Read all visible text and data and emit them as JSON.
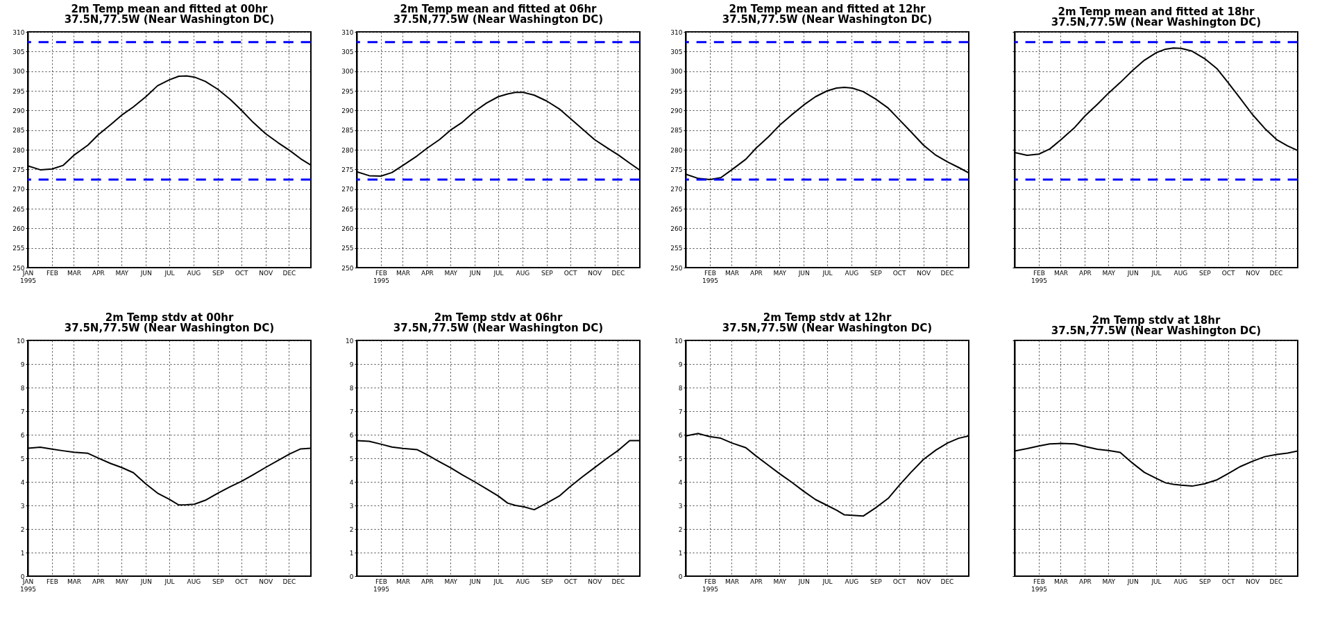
{
  "chart_data": [
    {
      "type": "line",
      "title": "2m Temp mean and fitted at 00hr",
      "subtitle": "37.5N,77.5W  (Near Washington DC)",
      "x": [
        "1995-01-01",
        "1995-01-17",
        "1995-02-01",
        "1995-02-15",
        "1995-03-01",
        "1995-03-19",
        "1995-04-01",
        "1995-04-17",
        "1995-05-01",
        "1995-05-16",
        "1995-06-01",
        "1995-06-16",
        "1995-07-01",
        "1995-07-13",
        "1995-07-23",
        "1995-08-02",
        "1995-08-16",
        "1995-09-01",
        "1995-09-17",
        "1995-10-01",
        "1995-10-16",
        "1995-11-01",
        "1995-11-17",
        "1995-12-02",
        "1995-12-16",
        "1995-12-29"
      ],
      "series": [
        {
          "color": "#000000",
          "values": [
            275.9,
            274.9,
            275.1,
            276.0,
            278.6,
            281.2,
            283.8,
            286.4,
            288.8,
            290.9,
            293.5,
            296.3,
            297.8,
            298.7,
            298.8,
            298.5,
            297.4,
            295.4,
            292.8,
            290.1,
            287.0,
            284.1,
            281.8,
            279.8,
            277.7,
            276.1
          ]
        }
      ],
      "xlim": [
        "1995-01-01",
        "1995-12-29"
      ],
      "xticks": [
        {
          "value": "1995-01-01",
          "label": "JAN 1995"
        },
        {
          "value": "1995-02-01",
          "label": "FEB"
        },
        {
          "value": "1995-03-01",
          "label": "MAR"
        },
        {
          "value": "1995-04-01",
          "label": "APR"
        },
        {
          "value": "1995-05-01",
          "label": "MAY"
        },
        {
          "value": "1995-06-01",
          "label": "JUN"
        },
        {
          "value": "1995-07-01",
          "label": "JUL"
        },
        {
          "value": "1995-08-01",
          "label": "AUG"
        },
        {
          "value": "1995-09-01",
          "label": "SEP"
        },
        {
          "value": "1995-10-01",
          "label": "OCT"
        },
        {
          "value": "1995-11-01",
          "label": "NOV"
        },
        {
          "value": "1995-12-01",
          "label": "DEC"
        }
      ],
      "ylim": [
        250,
        310
      ],
      "yticks": [
        250,
        255,
        260,
        265,
        270,
        275,
        280,
        285,
        290,
        295,
        300,
        305,
        310
      ],
      "grid": true,
      "ref_lines": [
        {
          "axis": "y",
          "value": 307.4,
          "color": "#0000ff",
          "line_style": "dashed"
        },
        {
          "axis": "y",
          "value": 272.4,
          "color": "#0000ff",
          "line_style": "dashed"
        }
      ]
    },
    {
      "type": "line",
      "title": "2m Temp mean and fitted at 06hr",
      "subtitle": "37.5N,77.5W  (Near Washington DC)",
      "x": [
        "1995-01-01",
        "1995-01-17",
        "1995-02-01",
        "1995-02-15",
        "1995-03-01",
        "1995-03-19",
        "1995-04-01",
        "1995-04-17",
        "1995-05-01",
        "1995-05-16",
        "1995-06-01",
        "1995-06-16",
        "1995-07-01",
        "1995-07-13",
        "1995-07-23",
        "1995-08-02",
        "1995-08-16",
        "1995-09-01",
        "1995-09-17",
        "1995-10-01",
        "1995-10-16",
        "1995-11-01",
        "1995-11-17",
        "1995-12-02",
        "1995-12-16",
        "1995-12-29"
      ],
      "series": [
        {
          "color": "#000000",
          "values": [
            274.4,
            273.4,
            273.3,
            274.2,
            276.0,
            278.4,
            280.4,
            282.6,
            285.0,
            287.0,
            289.8,
            291.9,
            293.5,
            294.2,
            294.6,
            294.6,
            293.9,
            292.4,
            290.4,
            288.0,
            285.4,
            282.6,
            280.5,
            278.6,
            276.6,
            274.8
          ]
        }
      ],
      "xlim": [
        "1995-01-01",
        "1995-12-29"
      ],
      "xticks": [
        {
          "value": "1995-02-01",
          "label": "FEB 1995"
        },
        {
          "value": "1995-03-01",
          "label": "MAR"
        },
        {
          "value": "1995-04-01",
          "label": "APR"
        },
        {
          "value": "1995-05-01",
          "label": "MAY"
        },
        {
          "value": "1995-06-01",
          "label": "JUN"
        },
        {
          "value": "1995-07-01",
          "label": "JUL"
        },
        {
          "value": "1995-08-01",
          "label": "AUG"
        },
        {
          "value": "1995-09-01",
          "label": "SEP"
        },
        {
          "value": "1995-10-01",
          "label": "OCT"
        },
        {
          "value": "1995-11-01",
          "label": "NOV"
        },
        {
          "value": "1995-12-01",
          "label": "DEC"
        }
      ],
      "ylim": [
        250,
        310
      ],
      "yticks": [
        250,
        255,
        260,
        265,
        270,
        275,
        280,
        285,
        290,
        295,
        300,
        305,
        310
      ],
      "grid": true,
      "ref_lines": [
        {
          "axis": "y",
          "value": 307.4,
          "color": "#0000ff",
          "line_style": "dashed"
        },
        {
          "axis": "y",
          "value": 272.4,
          "color": "#0000ff",
          "line_style": "dashed"
        }
      ]
    },
    {
      "type": "line",
      "title": "2m Temp mean and fitted at 12hr",
      "subtitle": "37.5N,77.5W  (Near Washington DC)",
      "x": [
        "1995-01-01",
        "1995-01-17",
        "1995-02-01",
        "1995-02-15",
        "1995-03-01",
        "1995-03-19",
        "1995-04-01",
        "1995-04-17",
        "1995-05-01",
        "1995-05-16",
        "1995-06-01",
        "1995-06-16",
        "1995-07-01",
        "1995-07-13",
        "1995-07-23",
        "1995-08-02",
        "1995-08-16",
        "1995-09-01",
        "1995-09-17",
        "1995-10-01",
        "1995-10-16",
        "1995-11-01",
        "1995-11-17",
        "1995-12-02",
        "1995-12-16",
        "1995-12-29"
      ],
      "series": [
        {
          "color": "#000000",
          "values": [
            273.8,
            272.7,
            272.4,
            272.9,
            274.9,
            277.6,
            280.4,
            283.3,
            286.2,
            288.8,
            291.4,
            293.5,
            295.0,
            295.7,
            295.9,
            295.7,
            294.8,
            292.9,
            290.6,
            287.7,
            284.6,
            281.2,
            278.6,
            276.9,
            275.5,
            274.1
          ]
        }
      ],
      "xlim": [
        "1995-01-01",
        "1995-12-29"
      ],
      "xticks": [
        {
          "value": "1995-02-01",
          "label": "FEB 1995"
        },
        {
          "value": "1995-03-01",
          "label": "MAR"
        },
        {
          "value": "1995-04-01",
          "label": "APR"
        },
        {
          "value": "1995-05-01",
          "label": "MAY"
        },
        {
          "value": "1995-06-01",
          "label": "JUN"
        },
        {
          "value": "1995-07-01",
          "label": "JUL"
        },
        {
          "value": "1995-08-01",
          "label": "AUG"
        },
        {
          "value": "1995-09-01",
          "label": "SEP"
        },
        {
          "value": "1995-10-01",
          "label": "OCT"
        },
        {
          "value": "1995-11-01",
          "label": "NOV"
        },
        {
          "value": "1995-12-01",
          "label": "DEC"
        }
      ],
      "ylim": [
        250,
        310
      ],
      "yticks": [
        250,
        255,
        260,
        265,
        270,
        275,
        280,
        285,
        290,
        295,
        300,
        305,
        310
      ],
      "grid": true,
      "ref_lines": [
        {
          "axis": "y",
          "value": 307.4,
          "color": "#0000ff",
          "line_style": "dashed"
        },
        {
          "axis": "y",
          "value": 272.4,
          "color": "#0000ff",
          "line_style": "dashed"
        }
      ]
    },
    {
      "type": "line",
      "title": "2m Temp mean and fitted at 18hr",
      "subtitle": "37.5N,77.5W  (Near Washington DC)",
      "x": [
        "1995-01-01",
        "1995-01-17",
        "1995-02-01",
        "1995-02-15",
        "1995-03-01",
        "1995-03-19",
        "1995-04-01",
        "1995-04-17",
        "1995-05-01",
        "1995-05-16",
        "1995-06-01",
        "1995-06-16",
        "1995-07-01",
        "1995-07-13",
        "1995-07-23",
        "1995-08-02",
        "1995-08-16",
        "1995-09-01",
        "1995-09-17",
        "1995-10-01",
        "1995-10-16",
        "1995-11-01",
        "1995-11-17",
        "1995-12-02",
        "1995-12-16",
        "1995-12-29"
      ],
      "series": [
        {
          "color": "#000000",
          "values": [
            279.3,
            278.6,
            278.9,
            280.2,
            282.5,
            285.7,
            288.6,
            291.6,
            294.4,
            297.1,
            300.2,
            302.8,
            304.7,
            305.6,
            305.9,
            305.8,
            305.1,
            303.2,
            300.6,
            297.1,
            293.2,
            289.0,
            285.4,
            282.6,
            281.0,
            279.8
          ]
        }
      ],
      "xlim": [
        "1995-01-01",
        "1995-12-29"
      ],
      "xticks": [
        {
          "value": "1995-02-01",
          "label": "FEB 1995"
        },
        {
          "value": "1995-03-01",
          "label": "MAR"
        },
        {
          "value": "1995-04-01",
          "label": "APR"
        },
        {
          "value": "1995-05-01",
          "label": "MAY"
        },
        {
          "value": "1995-06-01",
          "label": "JUN"
        },
        {
          "value": "1995-07-01",
          "label": "JUL"
        },
        {
          "value": "1995-08-01",
          "label": "AUG"
        },
        {
          "value": "1995-09-01",
          "label": "SEP"
        },
        {
          "value": "1995-10-01",
          "label": "OCT"
        },
        {
          "value": "1995-11-01",
          "label": "NOV"
        },
        {
          "value": "1995-12-01",
          "label": "DEC"
        }
      ],
      "ylim": [
        250,
        310
      ],
      "yticks": [
        250,
        255,
        260,
        265,
        270,
        275,
        280,
        285,
        290,
        295,
        300,
        305,
        310
      ],
      "grid": true,
      "tick_labels": "x",
      "ref_lines": [
        {
          "axis": "y",
          "value": 307.4,
          "color": "#0000ff",
          "line_style": "dashed"
        },
        {
          "axis": "y",
          "value": 272.4,
          "color": "#0000ff",
          "line_style": "dashed"
        }
      ]
    },
    {
      "type": "line",
      "title": "2m Temp stdv at 00hr",
      "subtitle": "37.5N,77.5W  (Near Washington DC)",
      "x": [
        "1995-01-01",
        "1995-01-17",
        "1995-02-01",
        "1995-02-15",
        "1995-03-01",
        "1995-03-19",
        "1995-04-01",
        "1995-04-17",
        "1995-05-01",
        "1995-05-16",
        "1995-06-01",
        "1995-06-16",
        "1995-07-01",
        "1995-07-13",
        "1995-07-23",
        "1995-08-02",
        "1995-08-16",
        "1995-09-01",
        "1995-09-17",
        "1995-10-01",
        "1995-10-16",
        "1995-11-01",
        "1995-11-17",
        "1995-12-02",
        "1995-12-16",
        "1995-12-29"
      ],
      "series": [
        {
          "color": "#000000",
          "values": [
            5.43,
            5.47,
            5.39,
            5.32,
            5.26,
            5.21,
            5.01,
            4.78,
            4.61,
            4.39,
            3.91,
            3.52,
            3.26,
            3.02,
            3.03,
            3.05,
            3.22,
            3.52,
            3.8,
            4.02,
            4.3,
            4.61,
            4.91,
            5.19,
            5.4,
            5.43
          ]
        }
      ],
      "xlim": [
        "1995-01-01",
        "1995-12-29"
      ],
      "xticks": [
        {
          "value": "1995-01-01",
          "label": "JAN 1995"
        },
        {
          "value": "1995-02-01",
          "label": "FEB"
        },
        {
          "value": "1995-03-01",
          "label": "MAR"
        },
        {
          "value": "1995-04-01",
          "label": "APR"
        },
        {
          "value": "1995-05-01",
          "label": "MAY"
        },
        {
          "value": "1995-06-01",
          "label": "JUN"
        },
        {
          "value": "1995-07-01",
          "label": "JUL"
        },
        {
          "value": "1995-08-01",
          "label": "AUG"
        },
        {
          "value": "1995-09-01",
          "label": "SEP"
        },
        {
          "value": "1995-10-01",
          "label": "OCT"
        },
        {
          "value": "1995-11-01",
          "label": "NOV"
        },
        {
          "value": "1995-12-01",
          "label": "DEC"
        }
      ],
      "ylim": [
        0,
        10
      ],
      "yticks": [
        0,
        1,
        2,
        3,
        4,
        5,
        6,
        7,
        8,
        9,
        10
      ],
      "grid": true
    },
    {
      "type": "line",
      "title": "2m Temp stdv at 06hr",
      "subtitle": "37.5N,77.5W  (Near Washington DC)",
      "x": [
        "1995-01-01",
        "1995-01-17",
        "1995-02-01",
        "1995-02-15",
        "1995-03-01",
        "1995-03-19",
        "1995-04-01",
        "1995-04-17",
        "1995-05-01",
        "1995-05-16",
        "1995-06-01",
        "1995-06-16",
        "1995-07-01",
        "1995-07-13",
        "1995-07-23",
        "1995-08-02",
        "1995-08-16",
        "1995-09-01",
        "1995-09-17",
        "1995-10-01",
        "1995-10-16",
        "1995-11-01",
        "1995-11-17",
        "1995-12-02",
        "1995-12-16",
        "1995-12-29"
      ],
      "series": [
        {
          "color": "#000000",
          "values": [
            5.75,
            5.72,
            5.6,
            5.48,
            5.42,
            5.37,
            5.15,
            4.85,
            4.6,
            4.3,
            4.0,
            3.7,
            3.4,
            3.1,
            3.0,
            2.95,
            2.82,
            3.1,
            3.4,
            3.8,
            4.2,
            4.6,
            5.0,
            5.35,
            5.75,
            5.75
          ]
        }
      ],
      "xlim": [
        "1995-01-01",
        "1995-12-29"
      ],
      "xticks": [
        {
          "value": "1995-02-01",
          "label": "FEB 1995"
        },
        {
          "value": "1995-03-01",
          "label": "MAR"
        },
        {
          "value": "1995-04-01",
          "label": "APR"
        },
        {
          "value": "1995-05-01",
          "label": "MAY"
        },
        {
          "value": "1995-06-01",
          "label": "JUN"
        },
        {
          "value": "1995-07-01",
          "label": "JUL"
        },
        {
          "value": "1995-08-01",
          "label": "AUG"
        },
        {
          "value": "1995-09-01",
          "label": "SEP"
        },
        {
          "value": "1995-10-01",
          "label": "OCT"
        },
        {
          "value": "1995-11-01",
          "label": "NOV"
        },
        {
          "value": "1995-12-01",
          "label": "DEC"
        }
      ],
      "ylim": [
        0,
        10
      ],
      "yticks": [
        0,
        1,
        2,
        3,
        4,
        5,
        6,
        7,
        8,
        9,
        10
      ],
      "grid": true
    },
    {
      "type": "line",
      "title": "2m Temp stdv at 12hr",
      "subtitle": "37.5N,77.5W  (Near Washington DC)",
      "x": [
        "1995-01-01",
        "1995-01-17",
        "1995-02-01",
        "1995-02-15",
        "1995-03-01",
        "1995-03-19",
        "1995-04-01",
        "1995-04-17",
        "1995-05-01",
        "1995-05-16",
        "1995-06-01",
        "1995-06-16",
        "1995-07-01",
        "1995-07-13",
        "1995-07-23",
        "1995-08-02",
        "1995-08-16",
        "1995-09-01",
        "1995-09-17",
        "1995-10-01",
        "1995-10-16",
        "1995-11-01",
        "1995-11-17",
        "1995-12-02",
        "1995-12-16",
        "1995-12-29"
      ],
      "series": [
        {
          "color": "#000000",
          "values": [
            5.95,
            6.05,
            5.92,
            5.85,
            5.65,
            5.45,
            5.1,
            4.7,
            4.35,
            4.0,
            3.6,
            3.25,
            3.0,
            2.8,
            2.6,
            2.58,
            2.55,
            2.9,
            3.3,
            3.85,
            4.4,
            4.95,
            5.35,
            5.65,
            5.85,
            5.95
          ]
        }
      ],
      "xlim": [
        "1995-01-01",
        "1995-12-29"
      ],
      "xticks": [
        {
          "value": "1995-02-01",
          "label": "FEB 1995"
        },
        {
          "value": "1995-03-01",
          "label": "MAR"
        },
        {
          "value": "1995-04-01",
          "label": "APR"
        },
        {
          "value": "1995-05-01",
          "label": "MAY"
        },
        {
          "value": "1995-06-01",
          "label": "JUN"
        },
        {
          "value": "1995-07-01",
          "label": "JUL"
        },
        {
          "value": "1995-08-01",
          "label": "AUG"
        },
        {
          "value": "1995-09-01",
          "label": "SEP"
        },
        {
          "value": "1995-10-01",
          "label": "OCT"
        },
        {
          "value": "1995-11-01",
          "label": "NOV"
        },
        {
          "value": "1995-12-01",
          "label": "DEC"
        }
      ],
      "ylim": [
        0,
        10
      ],
      "yticks": [
        0,
        1,
        2,
        3,
        4,
        5,
        6,
        7,
        8,
        9,
        10
      ],
      "grid": true
    },
    {
      "type": "line",
      "title": "2m Temp stdv at 18hr",
      "subtitle": "37.5N,77.5W  (Near Washington DC)",
      "x": [
        "1995-01-01",
        "1995-01-17",
        "1995-02-01",
        "1995-02-15",
        "1995-03-01",
        "1995-03-19",
        "1995-04-01",
        "1995-04-17",
        "1995-05-01",
        "1995-05-16",
        "1995-06-01",
        "1995-06-16",
        "1995-07-01",
        "1995-07-13",
        "1995-07-23",
        "1995-08-02",
        "1995-08-16",
        "1995-09-01",
        "1995-09-17",
        "1995-10-01",
        "1995-10-16",
        "1995-11-01",
        "1995-11-17",
        "1995-12-02",
        "1995-12-16",
        "1995-12-29"
      ],
      "series": [
        {
          "color": "#000000",
          "values": [
            5.31,
            5.41,
            5.52,
            5.61,
            5.63,
            5.61,
            5.5,
            5.38,
            5.33,
            5.25,
            4.79,
            4.4,
            4.15,
            3.96,
            3.9,
            3.86,
            3.82,
            3.92,
            4.09,
            4.35,
            4.64,
            4.87,
            5.07,
            5.16,
            5.22,
            5.31
          ]
        }
      ],
      "xlim": [
        "1995-01-01",
        "1995-12-29"
      ],
      "xticks": [
        {
          "value": "1995-02-01",
          "label": "FEB 1995"
        },
        {
          "value": "1995-03-01",
          "label": "MAR"
        },
        {
          "value": "1995-04-01",
          "label": "APR"
        },
        {
          "value": "1995-05-01",
          "label": "MAY"
        },
        {
          "value": "1995-06-01",
          "label": "JUN"
        },
        {
          "value": "1995-07-01",
          "label": "JUL"
        },
        {
          "value": "1995-08-01",
          "label": "AUG"
        },
        {
          "value": "1995-09-01",
          "label": "SEP"
        },
        {
          "value": "1995-10-01",
          "label": "OCT"
        },
        {
          "value": "1995-11-01",
          "label": "NOV"
        },
        {
          "value": "1995-12-01",
          "label": "DEC"
        }
      ],
      "ylim": [
        0,
        10
      ],
      "yticks": [
        0,
        1,
        2,
        3,
        4,
        5,
        6,
        7,
        8,
        9,
        10
      ],
      "grid": true,
      "tick_labels": "x"
    }
  ]
}
